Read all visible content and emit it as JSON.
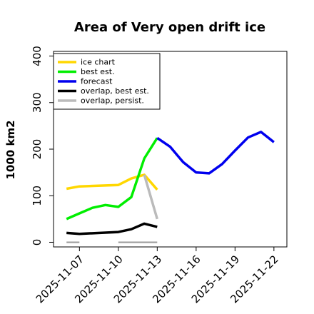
{
  "chart_data": {
    "type": "line",
    "title": "Area of Very open drift ice",
    "xlabel": "",
    "ylabel": "1000 km2",
    "xlim": [
      "2025-11-05",
      "2025-11-23"
    ],
    "ylim": [
      -10,
      410
    ],
    "y_ticks": [
      0,
      100,
      200,
      300,
      400
    ],
    "x_ticks": [
      "2025-11-07",
      "2025-11-10",
      "2025-11-13",
      "2025-11-16",
      "2025-11-19",
      "2025-11-22"
    ],
    "highlight_tick": "2025-11-13",
    "highlight_color": "#228B22",
    "grid": false,
    "legend_position": "top-left",
    "series": [
      {
        "name": "ice chart",
        "color": "#FFD700",
        "points": [
          [
            "2025-11-06",
            115
          ],
          [
            "2025-11-07",
            120
          ],
          [
            "2025-11-10",
            123
          ],
          [
            "2025-11-11",
            137
          ],
          [
            "2025-11-12",
            145
          ],
          [
            "2025-11-13",
            113
          ]
        ]
      },
      {
        "name": "best est.",
        "color": "#00EE00",
        "points": [
          [
            "2025-11-06",
            50
          ],
          [
            "2025-11-07",
            62
          ],
          [
            "2025-11-08",
            74
          ],
          [
            "2025-11-09",
            80
          ],
          [
            "2025-11-10",
            76
          ],
          [
            "2025-11-11",
            97
          ],
          [
            "2025-11-12",
            180
          ],
          [
            "2025-11-13",
            224
          ]
        ]
      },
      {
        "name": "forecast",
        "color": "#0000EE",
        "points": [
          [
            "2025-11-13",
            224
          ],
          [
            "2025-11-14",
            205
          ],
          [
            "2025-11-15",
            172
          ],
          [
            "2025-11-16",
            150
          ],
          [
            "2025-11-17",
            148
          ],
          [
            "2025-11-18",
            168
          ],
          [
            "2025-11-19",
            197
          ],
          [
            "2025-11-20",
            225
          ],
          [
            "2025-11-21",
            237
          ],
          [
            "2025-11-22",
            215
          ]
        ]
      },
      {
        "name": "overlap, best est.",
        "color": "#000000",
        "points": [
          [
            "2025-11-06",
            20
          ],
          [
            "2025-11-07",
            18
          ],
          [
            "2025-11-10",
            22
          ],
          [
            "2025-11-11",
            28
          ],
          [
            "2025-11-12",
            40
          ],
          [
            "2025-11-13",
            33
          ]
        ]
      },
      {
        "name": "overlap, persist.",
        "color": "#BBBBBB",
        "points": [
          [
            "2025-11-12",
            145
          ],
          [
            "2025-11-13",
            50
          ]
        ]
      },
      {
        "name": "overlap, persist. baseline",
        "color": "#999999",
        "show_in_legend": false,
        "segments": [
          [
            [
              "2025-11-06",
              0
            ],
            [
              "2025-11-07",
              0
            ]
          ],
          [
            [
              "2025-11-10",
              0
            ],
            [
              "2025-11-13",
              0
            ]
          ]
        ]
      }
    ]
  }
}
